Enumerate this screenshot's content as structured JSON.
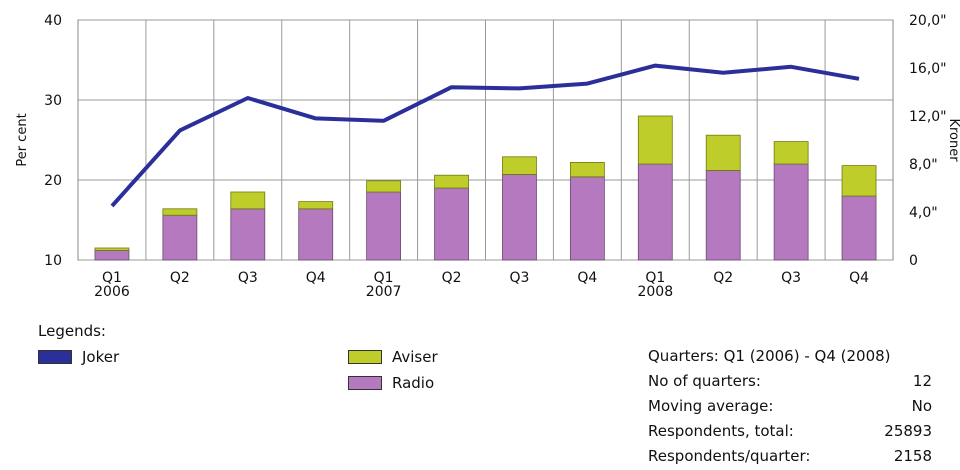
{
  "chart_data": {
    "type": "bar",
    "stacked": true,
    "categories": [
      "Q1\n2006",
      "Q2",
      "Q3",
      "Q4",
      "Q1\n2007",
      "Q2",
      "Q3",
      "Q4",
      "Q1\n2008",
      "Q2",
      "Q3",
      "Q4"
    ],
    "series": [
      {
        "name": "Radio",
        "color": "#b579bf",
        "values": [
          11.2,
          15.6,
          16.4,
          16.4,
          18.5,
          19.0,
          20.7,
          20.4,
          22.0,
          21.2,
          22.0,
          18.0
        ]
      },
      {
        "name": "Aviser",
        "color": "#bfcd2a",
        "values": [
          0.3,
          0.8,
          2.1,
          0.9,
          1.4,
          1.6,
          2.2,
          1.8,
          6.0,
          4.4,
          2.8,
          3.8
        ]
      },
      {
        "name": "Joker",
        "color": "#2b2f9a",
        "type": "line",
        "axis": "right",
        "values": [
          4.5,
          10.8,
          13.5,
          11.8,
          11.6,
          14.4,
          14.3,
          14.7,
          16.2,
          15.6,
          16.1,
          15.1
        ]
      }
    ],
    "ylabel": "Per cent",
    "y2label": "Kroner",
    "ylim": [
      10,
      40
    ],
    "y2lim": [
      0,
      20
    ],
    "yticks": [
      "10",
      "20",
      "30",
      "40"
    ],
    "y2ticks": [
      "0",
      "4,0\"",
      "8,0\"",
      "12,0\"",
      "16,0\"",
      "20,0\""
    ],
    "grid": true
  },
  "legend": {
    "title": "Legends:",
    "items": [
      {
        "name": "Joker",
        "color": "#2b2f9a"
      },
      {
        "name": "Aviser",
        "color": "#bfcd2a"
      },
      {
        "name": "Radio",
        "color": "#b579bf"
      }
    ]
  },
  "info": [
    {
      "label": "Quarters: Q1 (2006) - Q4 (2008)",
      "value": ""
    },
    {
      "label": "No of quarters:",
      "value": "12"
    },
    {
      "label": "Moving average:",
      "value": "No"
    },
    {
      "label": "Respondents, total:",
      "value": "25893"
    },
    {
      "label": "Respondents/quarter:",
      "value": "2158"
    }
  ]
}
